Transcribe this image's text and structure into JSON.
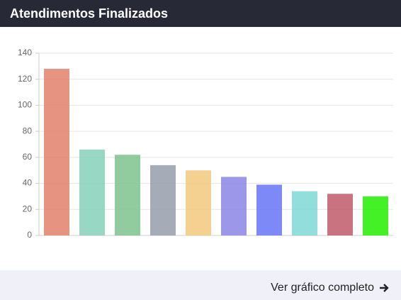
{
  "chart_data": {
    "type": "bar",
    "title": "Atendimentos Finalizados",
    "categories": [
      null,
      null,
      null,
      null,
      null,
      null,
      null,
      null,
      null,
      null
    ],
    "values": [
      128,
      66,
      62,
      54,
      50,
      45,
      39,
      34,
      32,
      30
    ],
    "colors": [
      "#e3806c",
      "#86d0b8",
      "#7dc38c",
      "#959eac",
      "#f2c97e",
      "#8c85e6",
      "#6674f5",
      "#7fd8d6",
      "#c05b6b",
      "#22ee00"
    ],
    "ylim": [
      0,
      140
    ],
    "yticks": [
      0,
      20,
      40,
      60,
      80,
      100,
      120,
      140
    ],
    "grid": true
  },
  "footer": {
    "link": "Ver gráfico completo"
  }
}
